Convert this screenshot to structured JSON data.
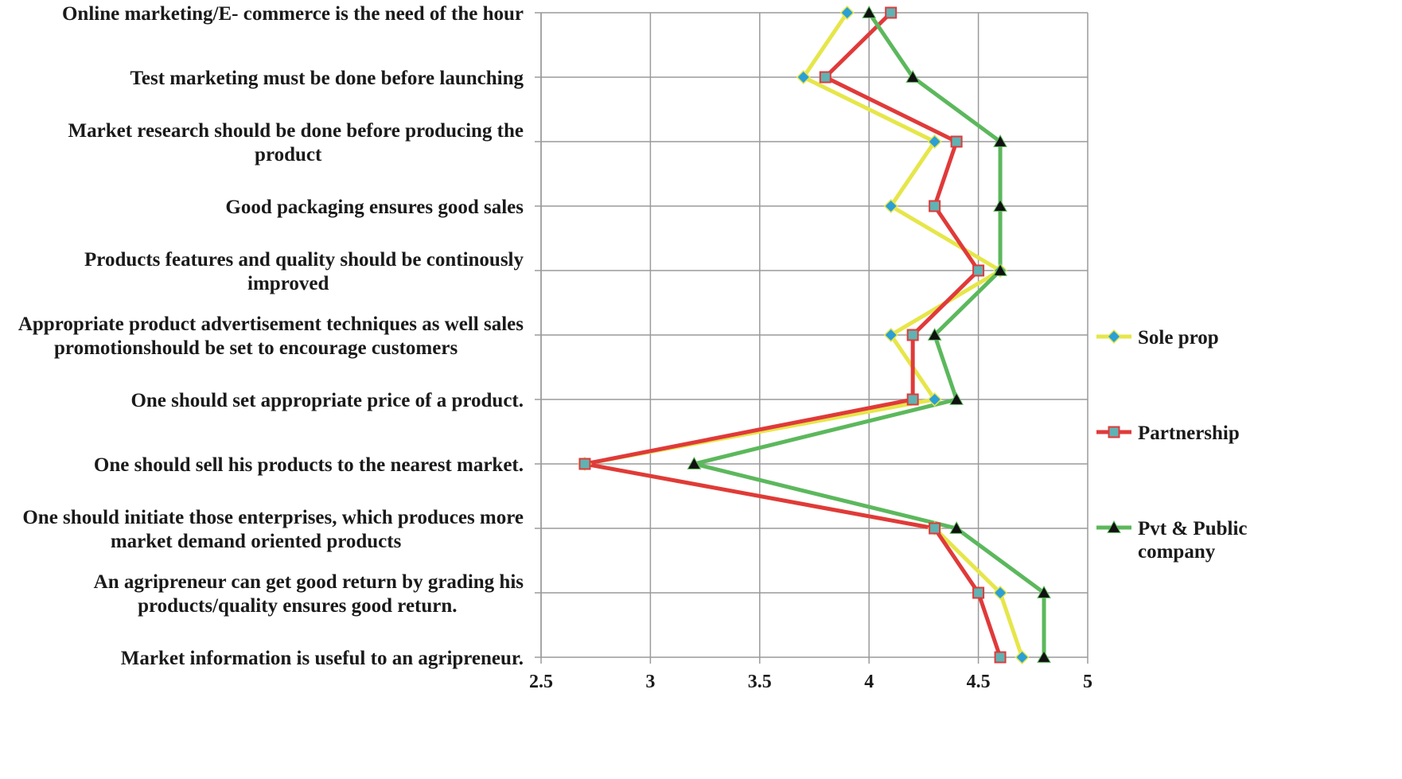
{
  "chart_data": {
    "type": "line",
    "orientation": "horizontal",
    "title": "",
    "xlabel": "",
    "ylabel": "",
    "xlim": [
      2.5,
      5
    ],
    "xticks": [
      "2.5",
      "3",
      "3.5",
      "4",
      "4.5",
      "5"
    ],
    "grid": true,
    "legend_position": "right",
    "categories": [
      [
        "Online marketing/E- commerce is the need of the hour"
      ],
      [
        "Test marketing must be done before launching"
      ],
      [
        "Market research should be done before producing the",
        "product"
      ],
      [
        "Good packaging ensures good sales"
      ],
      [
        "Products features and quality should be continously",
        "improved"
      ],
      [
        "Appropriate product advertisement techniques as well sales",
        "promotionshould be set to encourage customers"
      ],
      [
        "One should set appropriate price of a product."
      ],
      [
        "One should sell his products to the nearest market."
      ],
      [
        "One should initiate those enterprises, which produces more",
        "market demand oriented products"
      ],
      [
        "An agripreneur can get good return by grading his",
        "products/quality ensures good return."
      ],
      [
        "Market information is useful to an agripreneur."
      ]
    ],
    "series": [
      {
        "name": [
          "Sole prop"
        ],
        "color": "#e6e64a",
        "marker": "diamond",
        "marker_color": "#2b9fd6",
        "values": [
          3.9,
          3.7,
          4.3,
          4.1,
          4.6,
          4.1,
          4.3,
          2.7,
          4.3,
          4.6,
          4.7
        ]
      },
      {
        "name": [
          "Partnership"
        ],
        "color": "#e03a3a",
        "marker": "square",
        "marker_color": "#5fb3b3",
        "values": [
          4.1,
          3.8,
          4.4,
          4.3,
          4.5,
          4.2,
          4.2,
          2.7,
          4.3,
          4.5,
          4.6
        ]
      },
      {
        "name": [
          "Pvt & Public",
          "company"
        ],
        "color": "#5cb85c",
        "marker": "triangle",
        "marker_color": "#111111",
        "values": [
          4.0,
          4.2,
          4.6,
          4.6,
          4.6,
          4.3,
          4.4,
          3.2,
          4.4,
          4.8,
          4.8
        ]
      }
    ]
  }
}
